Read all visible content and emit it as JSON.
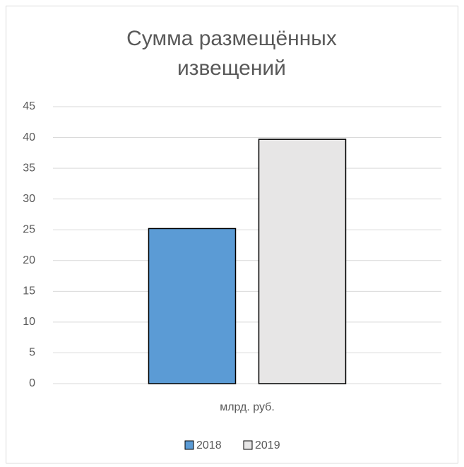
{
  "chart_data": {
    "type": "bar",
    "title": "Сумма размещённых извещений",
    "categories": [
      "млрд. руб."
    ],
    "series": [
      {
        "name": "2018",
        "color": "#5b9bd5",
        "values": [
          25.2
        ]
      },
      {
        "name": "2019",
        "color": "#e7e6e6",
        "values": [
          39.7
        ]
      }
    ],
    "ylim": [
      0,
      45
    ],
    "yticks": [
      0,
      5,
      10,
      15,
      20,
      25,
      30,
      35,
      40,
      45
    ],
    "grid": true,
    "legend": "bottom"
  }
}
